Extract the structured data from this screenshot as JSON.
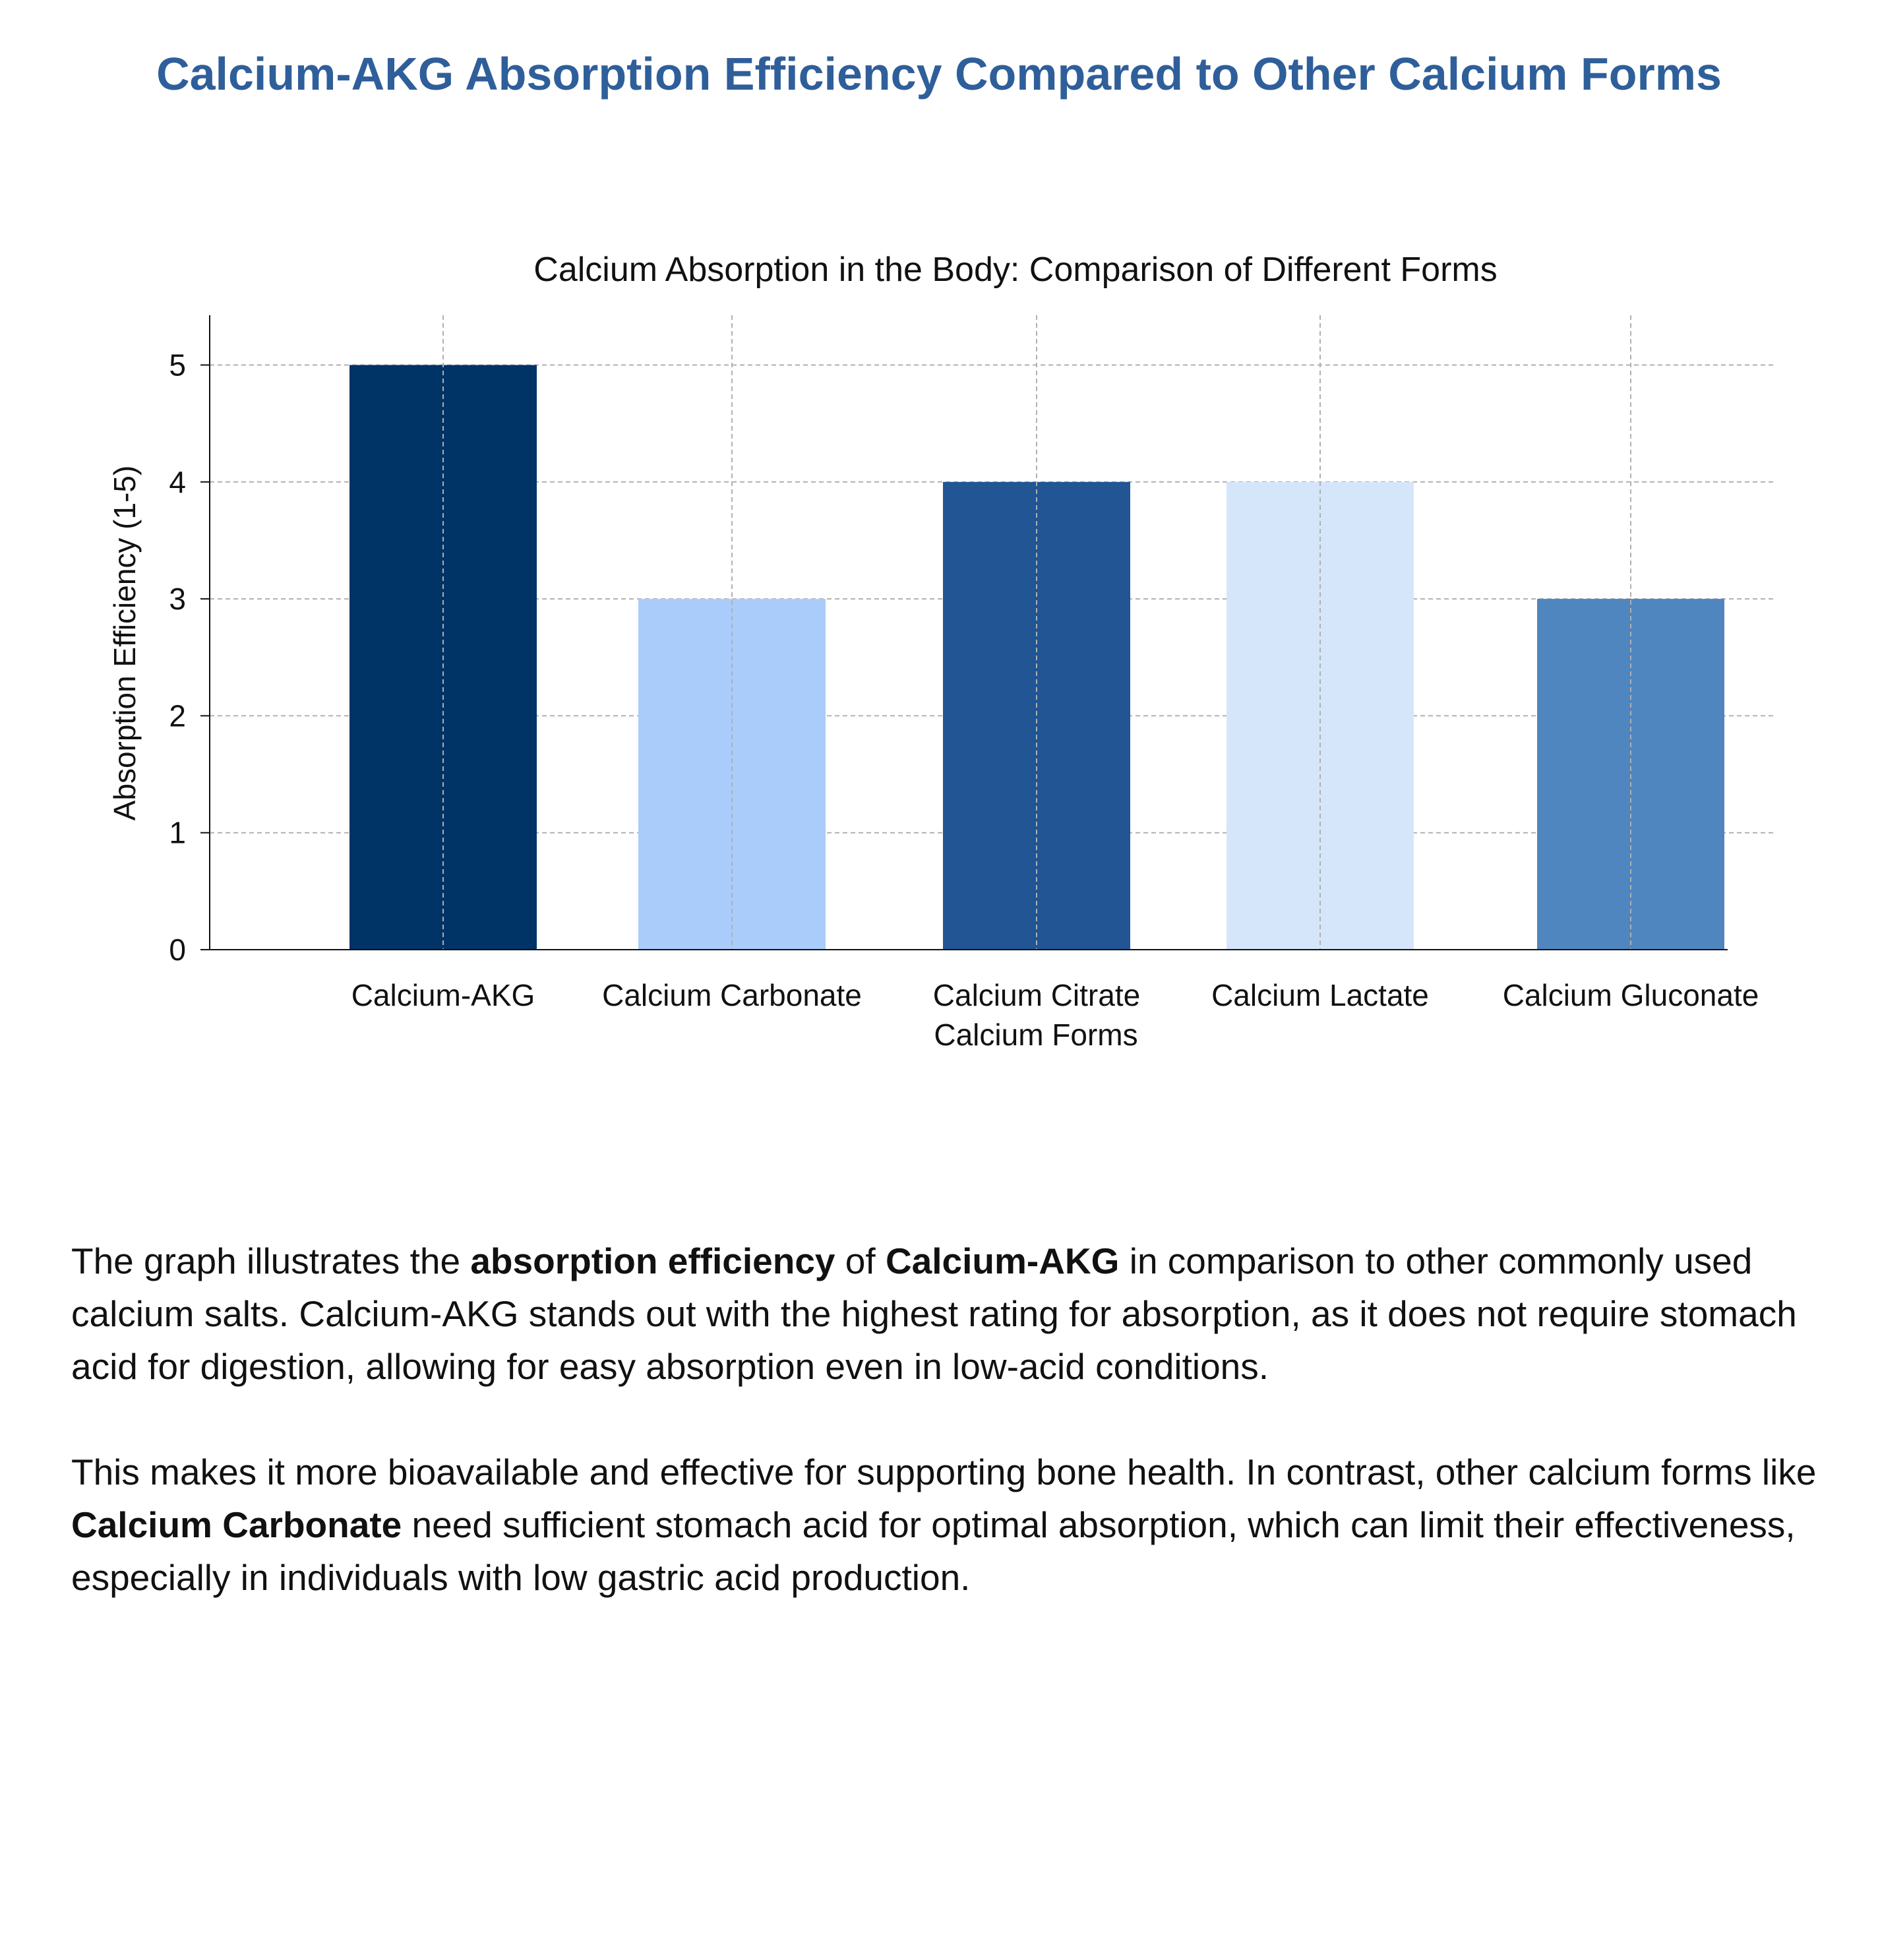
{
  "page": {
    "title": "Calcium-AKG Absorption Efficiency Compared to Other Calcium Forms"
  },
  "chart_data": {
    "type": "bar",
    "title": "Calcium Absorption in the Body: Comparison of Different Forms",
    "xlabel": "Calcium Forms",
    "ylabel": "Absorption Efficiency (1-5)",
    "categories": [
      "Calcium-AKG",
      "Calcium Carbonate",
      "Calcium Citrate",
      "Calcium Lactate",
      "Calcium Gluconate"
    ],
    "values": [
      5,
      3,
      4,
      4,
      3
    ],
    "colors": [
      "#003366",
      "#aaccfa",
      "#215594",
      "#d5e6fa",
      "#4f86bf"
    ],
    "ylim": [
      0,
      5.2
    ],
    "yticks": [
      0,
      1,
      2,
      3,
      4,
      5
    ],
    "grid": true,
    "grid_style": "dashed",
    "legend": "none"
  },
  "description": {
    "p1": {
      "t1": "The graph illustrates the ",
      "b1": "absorption efficiency",
      "t2": " of ",
      "b2": "Calcium-AKG",
      "t3": " in comparison to other commonly used calcium salts. Calcium-AKG stands out with the highest rating for absorption, as it does not require stomach acid for digestion, allowing for easy absorption even in low-acid conditions."
    },
    "p2": {
      "t1": "This makes it more bioavailable and effective for supporting bone health. In contrast, other calcium forms like ",
      "b1": "Calcium Carbonate",
      "t2": " need sufficient stomach acid for optimal absorption, which can limit their effectiveness, especially in individuals with low gastric acid production."
    }
  }
}
